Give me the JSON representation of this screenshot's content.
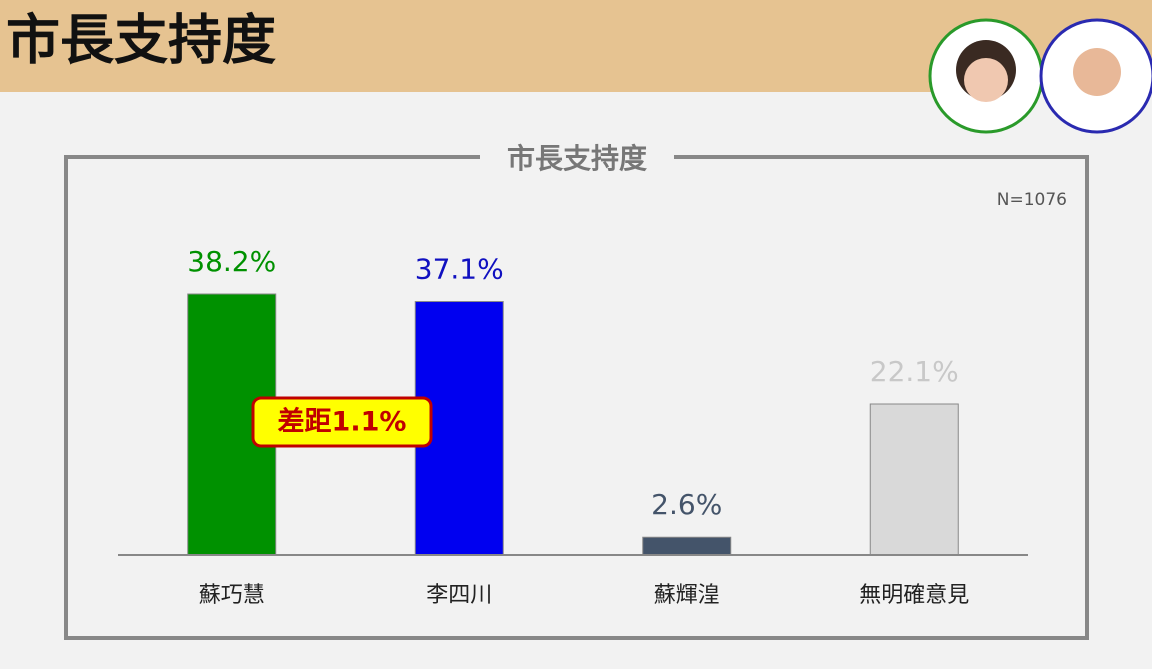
{
  "header": {
    "title": "市長支持度"
  },
  "chart_data": {
    "type": "bar",
    "title": "市長支持度",
    "note": "N=1076",
    "annotation": "差距1.1%",
    "categories": [
      "蘇巧慧",
      "李四川",
      "蘇輝湟",
      "無明確意見"
    ],
    "values": [
      38.2,
      37.1,
      2.6,
      22.1
    ],
    "value_labels": [
      "38.2%",
      "37.1%",
      "2.6%",
      "22.1%"
    ],
    "colors": [
      "#009100",
      "#0000f0",
      "#44546a",
      "#d9d9d9"
    ],
    "value_label_colors": [
      "#009100",
      "#1010c0",
      "#44546a",
      "#c8c8c8"
    ]
  }
}
